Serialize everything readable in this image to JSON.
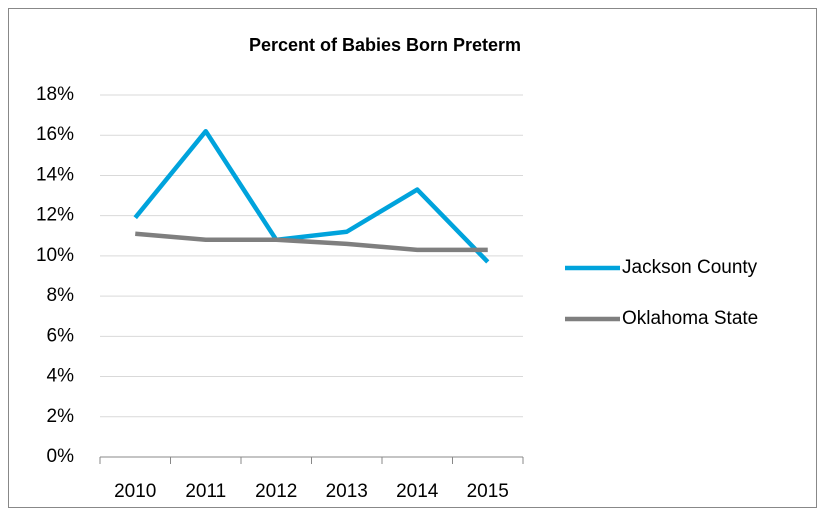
{
  "chart_data": {
    "type": "line",
    "title": "Percent of Babies Born Preterm",
    "categories": [
      "2010",
      "2011",
      "2012",
      "2013",
      "2014",
      "2015"
    ],
    "series": [
      {
        "name": "Jackson County",
        "color": "#00a3dc",
        "values": [
          11.9,
          16.2,
          10.8,
          11.2,
          13.3,
          9.7
        ]
      },
      {
        "name": "Oklahoma State",
        "color": "#7f7f7f",
        "values": [
          11.1,
          10.8,
          10.8,
          10.6,
          10.3,
          10.3
        ]
      }
    ],
    "ylim": [
      0,
      18
    ],
    "yticks": [
      {
        "value": 0,
        "label": "0%"
      },
      {
        "value": 2,
        "label": "2%"
      },
      {
        "value": 4,
        "label": "4%"
      },
      {
        "value": 6,
        "label": "6%"
      },
      {
        "value": 8,
        "label": "8%"
      },
      {
        "value": 10,
        "label": "10%"
      },
      {
        "value": 12,
        "label": "12%"
      },
      {
        "value": 14,
        "label": "14%"
      },
      {
        "value": 16,
        "label": "16%"
      },
      {
        "value": 18,
        "label": "18%"
      }
    ],
    "grid": true,
    "legend": "right"
  }
}
